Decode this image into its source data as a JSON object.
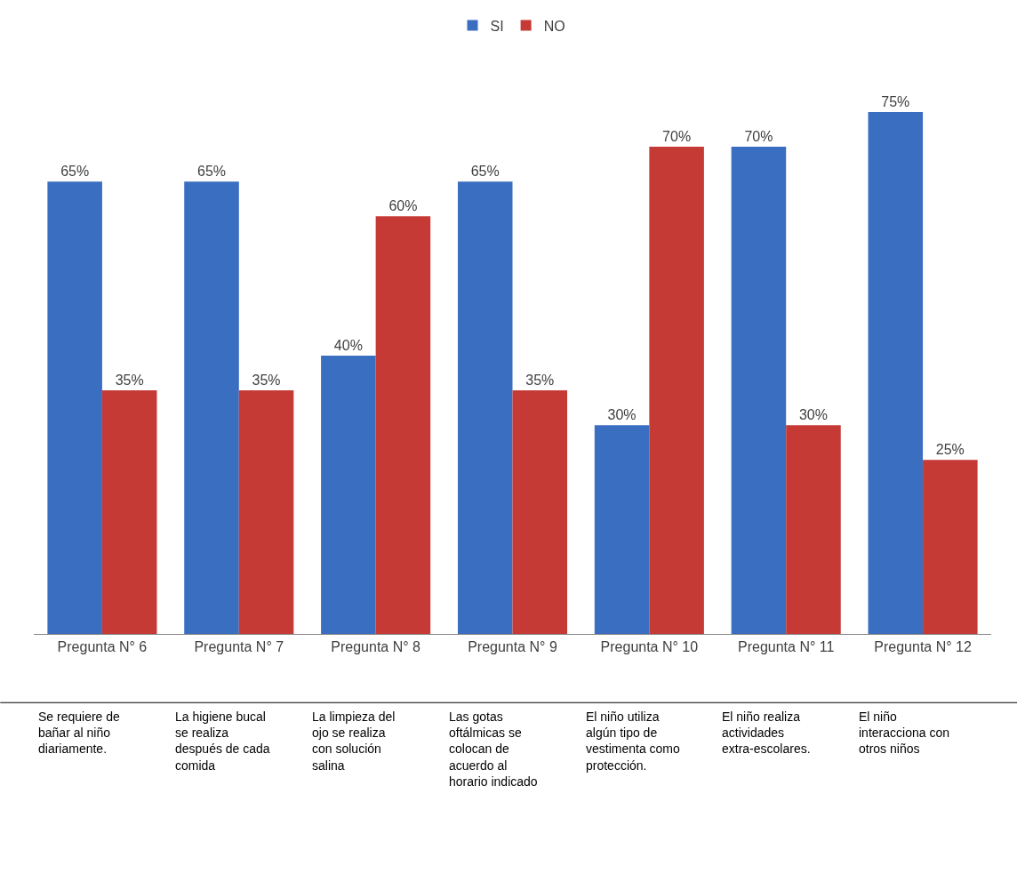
{
  "chart_data": {
    "type": "bar",
    "categories": [
      "Pregunta N° 6",
      "Pregunta N° 7",
      "Pregunta N° 8",
      "Pregunta N° 9",
      "Pregunta N° 10",
      "Pregunta N° 11",
      "Pregunta N° 12"
    ],
    "series": [
      {
        "name": "SI",
        "color": "#3a6ec0",
        "values": [
          65,
          65,
          40,
          65,
          30,
          70,
          75
        ],
        "value_labels": [
          "65%",
          "65%",
          "40%",
          "65%",
          "30%",
          "70%",
          "75%"
        ]
      },
      {
        "name": "NO",
        "color": "#c63a36",
        "values": [
          35,
          35,
          60,
          35,
          70,
          30,
          25
        ],
        "value_labels": [
          "35%",
          "35%",
          "60%",
          "35%",
          "70%",
          "30%",
          "25%"
        ]
      }
    ],
    "legend": "top",
    "annotations": [
      "Se requiere de bañar al niño diariamente.",
      "La higiene bucal se realiza después de cada comida",
      "La limpieza del ojo se realiza con solución salina",
      "Las gotas oftálmicas se colocan de acuerdo al horario indicado",
      "El niño utiliza algún tipo de vestimenta como protección.",
      "El niño realiza actividades extra-escolares.",
      "El niño interacciona con otros niños"
    ]
  }
}
